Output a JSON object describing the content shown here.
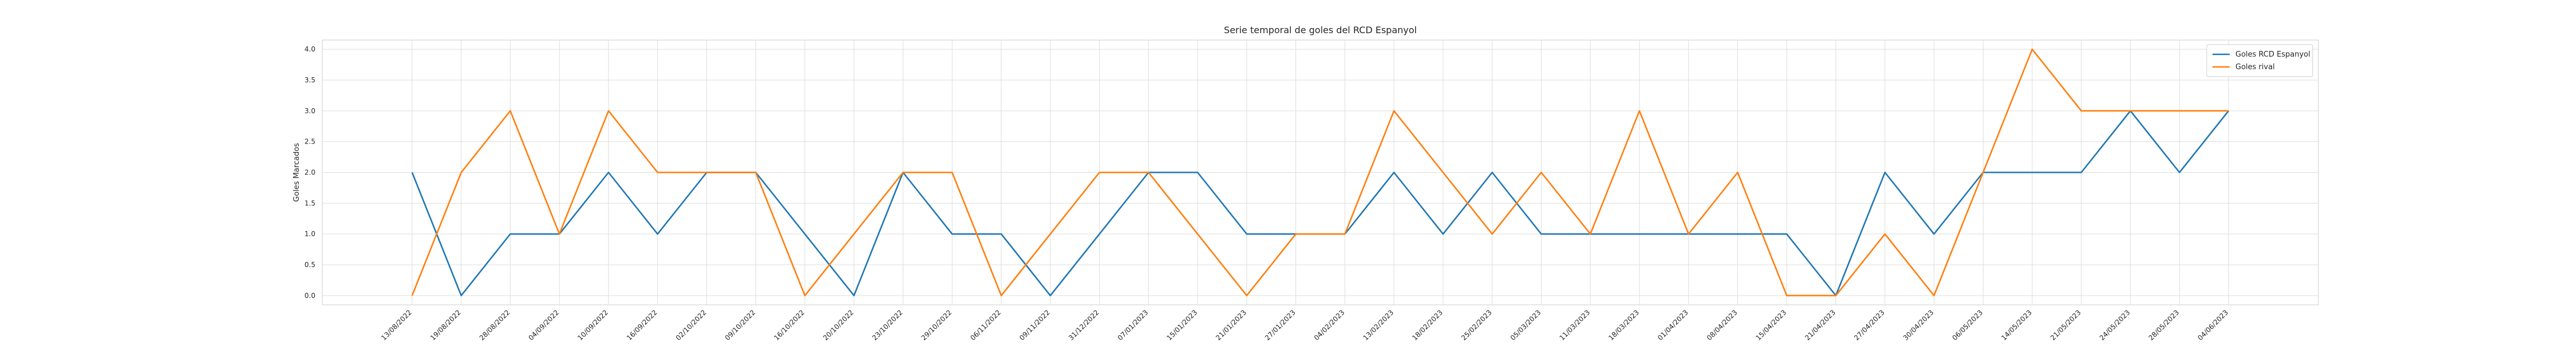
{
  "chart_data": {
    "type": "line",
    "title": "Serie temporal de goles del RCD Espanyol",
    "xlabel": "",
    "ylabel": "Goles Marcados",
    "ylim": [
      -0.15,
      4.15
    ],
    "yticks": [
      0.0,
      0.5,
      1.0,
      1.5,
      2.0,
      2.5,
      3.0,
      3.5,
      4.0
    ],
    "ytick_labels": [
      "0.0",
      "0.5",
      "1.0",
      "1.5",
      "2.0",
      "2.5",
      "3.0",
      "3.5",
      "4.0"
    ],
    "grid": true,
    "legend_position": "top-right",
    "x": [
      "13/08/2022",
      "19/08/2022",
      "28/08/2022",
      "04/09/2022",
      "10/09/2022",
      "16/09/2022",
      "02/10/2022",
      "09/10/2022",
      "16/10/2022",
      "20/10/2022",
      "23/10/2022",
      "29/10/2022",
      "06/11/2022",
      "09/11/2022",
      "31/12/2022",
      "07/01/2023",
      "15/01/2023",
      "21/01/2023",
      "27/01/2023",
      "04/02/2023",
      "13/02/2023",
      "18/02/2023",
      "25/02/2023",
      "05/03/2023",
      "11/03/2023",
      "18/03/2023",
      "01/04/2023",
      "08/04/2023",
      "15/04/2023",
      "21/04/2023",
      "27/04/2023",
      "30/04/2023",
      "06/05/2023",
      "14/05/2023",
      "21/05/2023",
      "24/05/2023",
      "28/05/2023",
      "04/06/2023"
    ],
    "series": [
      {
        "name": "Goles RCD Espanyol",
        "color": "#1f77b4",
        "values": [
          2,
          0,
          1,
          1,
          2,
          1,
          2,
          2,
          1,
          0,
          2,
          1,
          1,
          0,
          1,
          2,
          2,
          1,
          1,
          1,
          2,
          1,
          2,
          1,
          1,
          1,
          1,
          1,
          1,
          0,
          2,
          1,
          2,
          2,
          2,
          3,
          2,
          3
        ]
      },
      {
        "name": "Goles rival",
        "color": "#ff7f0e",
        "values": [
          0,
          2,
          3,
          1,
          3,
          2,
          2,
          2,
          0,
          1,
          2,
          2,
          0,
          1,
          2,
          2,
          1,
          0,
          1,
          1,
          3,
          2,
          1,
          2,
          1,
          3,
          1,
          2,
          0,
          0,
          1,
          0,
          2,
          4,
          3,
          3,
          3,
          3
        ]
      }
    ]
  }
}
